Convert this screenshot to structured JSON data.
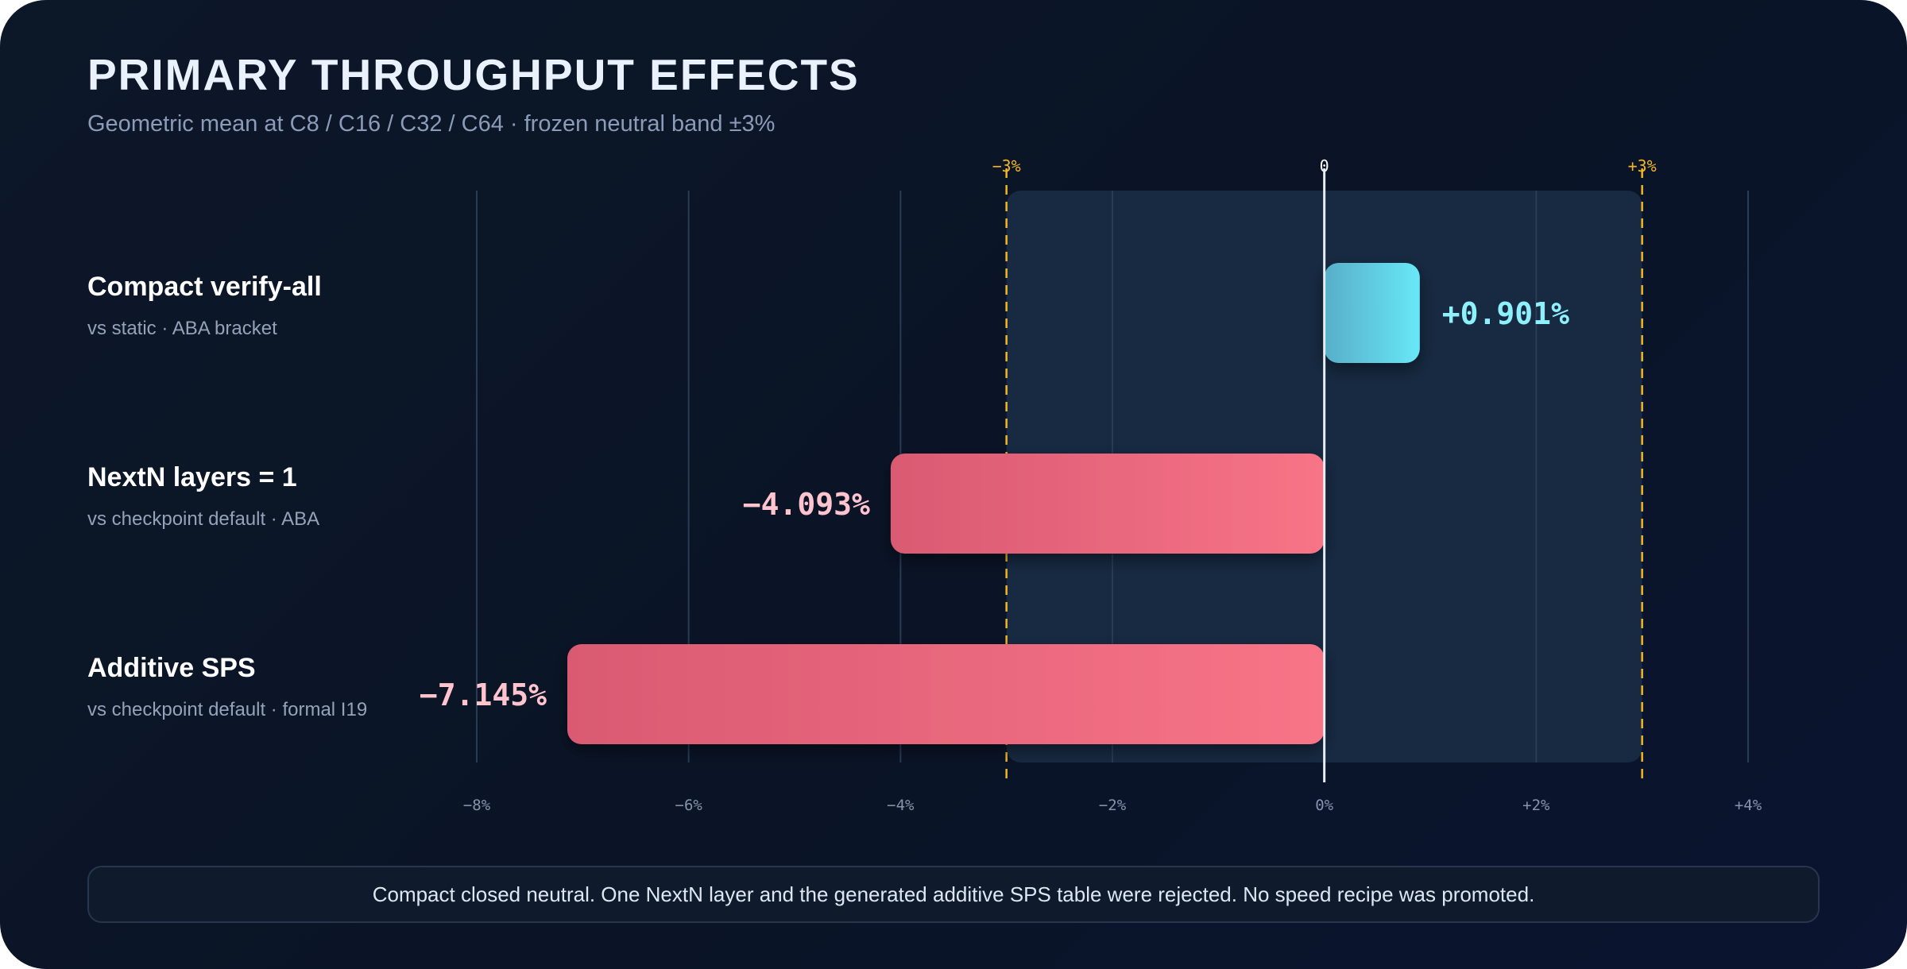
{
  "header": {
    "title": "PRIMARY THROUGHPUT EFFECTS",
    "subtitle": "Geometric mean at C8 / C16 / C32 / C64 · frozen neutral band ±3%"
  },
  "chart_data": {
    "type": "bar",
    "orientation": "horizontal",
    "categories": [
      {
        "label": "Compact verify-all",
        "sublabel": "vs static · ABA bracket"
      },
      {
        "label": "NextN layers = 1",
        "sublabel": "vs checkpoint default · ABA"
      },
      {
        "label": "Additive SPS",
        "sublabel": "vs checkpoint default · formal I19"
      }
    ],
    "values": [
      0.901,
      -4.093,
      -7.145
    ],
    "value_labels": [
      "+0.901%",
      "−4.093%",
      "−7.145%"
    ],
    "unit": "%",
    "xlim": [
      -8,
      4
    ],
    "x_ticks": [
      -8,
      -6,
      -4,
      -2,
      0,
      2,
      4
    ],
    "x_tick_labels": [
      "−8%",
      "−6%",
      "−4%",
      "−2%",
      "0%",
      "+2%",
      "+4%"
    ],
    "neutral_band": [
      -3,
      3
    ],
    "reference_labels": {
      "minus": "−3%",
      "zero": "0",
      "plus": "+3%"
    },
    "grid": true,
    "colors": {
      "positive_start": "#58aec8",
      "positive_end": "#68e8f8",
      "positive_label": "#8ef0fb",
      "negative_start": "#d95a72",
      "negative_end": "#f87487",
      "negative_label": "#ffc4ce",
      "band": "#172a42",
      "band_line": "#f2b625",
      "zero_line": "#e6edf5",
      "grid": "#2a3b55",
      "tick": "#8594ad"
    }
  },
  "footer": {
    "text": "Compact closed neutral. One NextN layer and the generated additive SPS table were rejected. No speed recipe was promoted."
  }
}
